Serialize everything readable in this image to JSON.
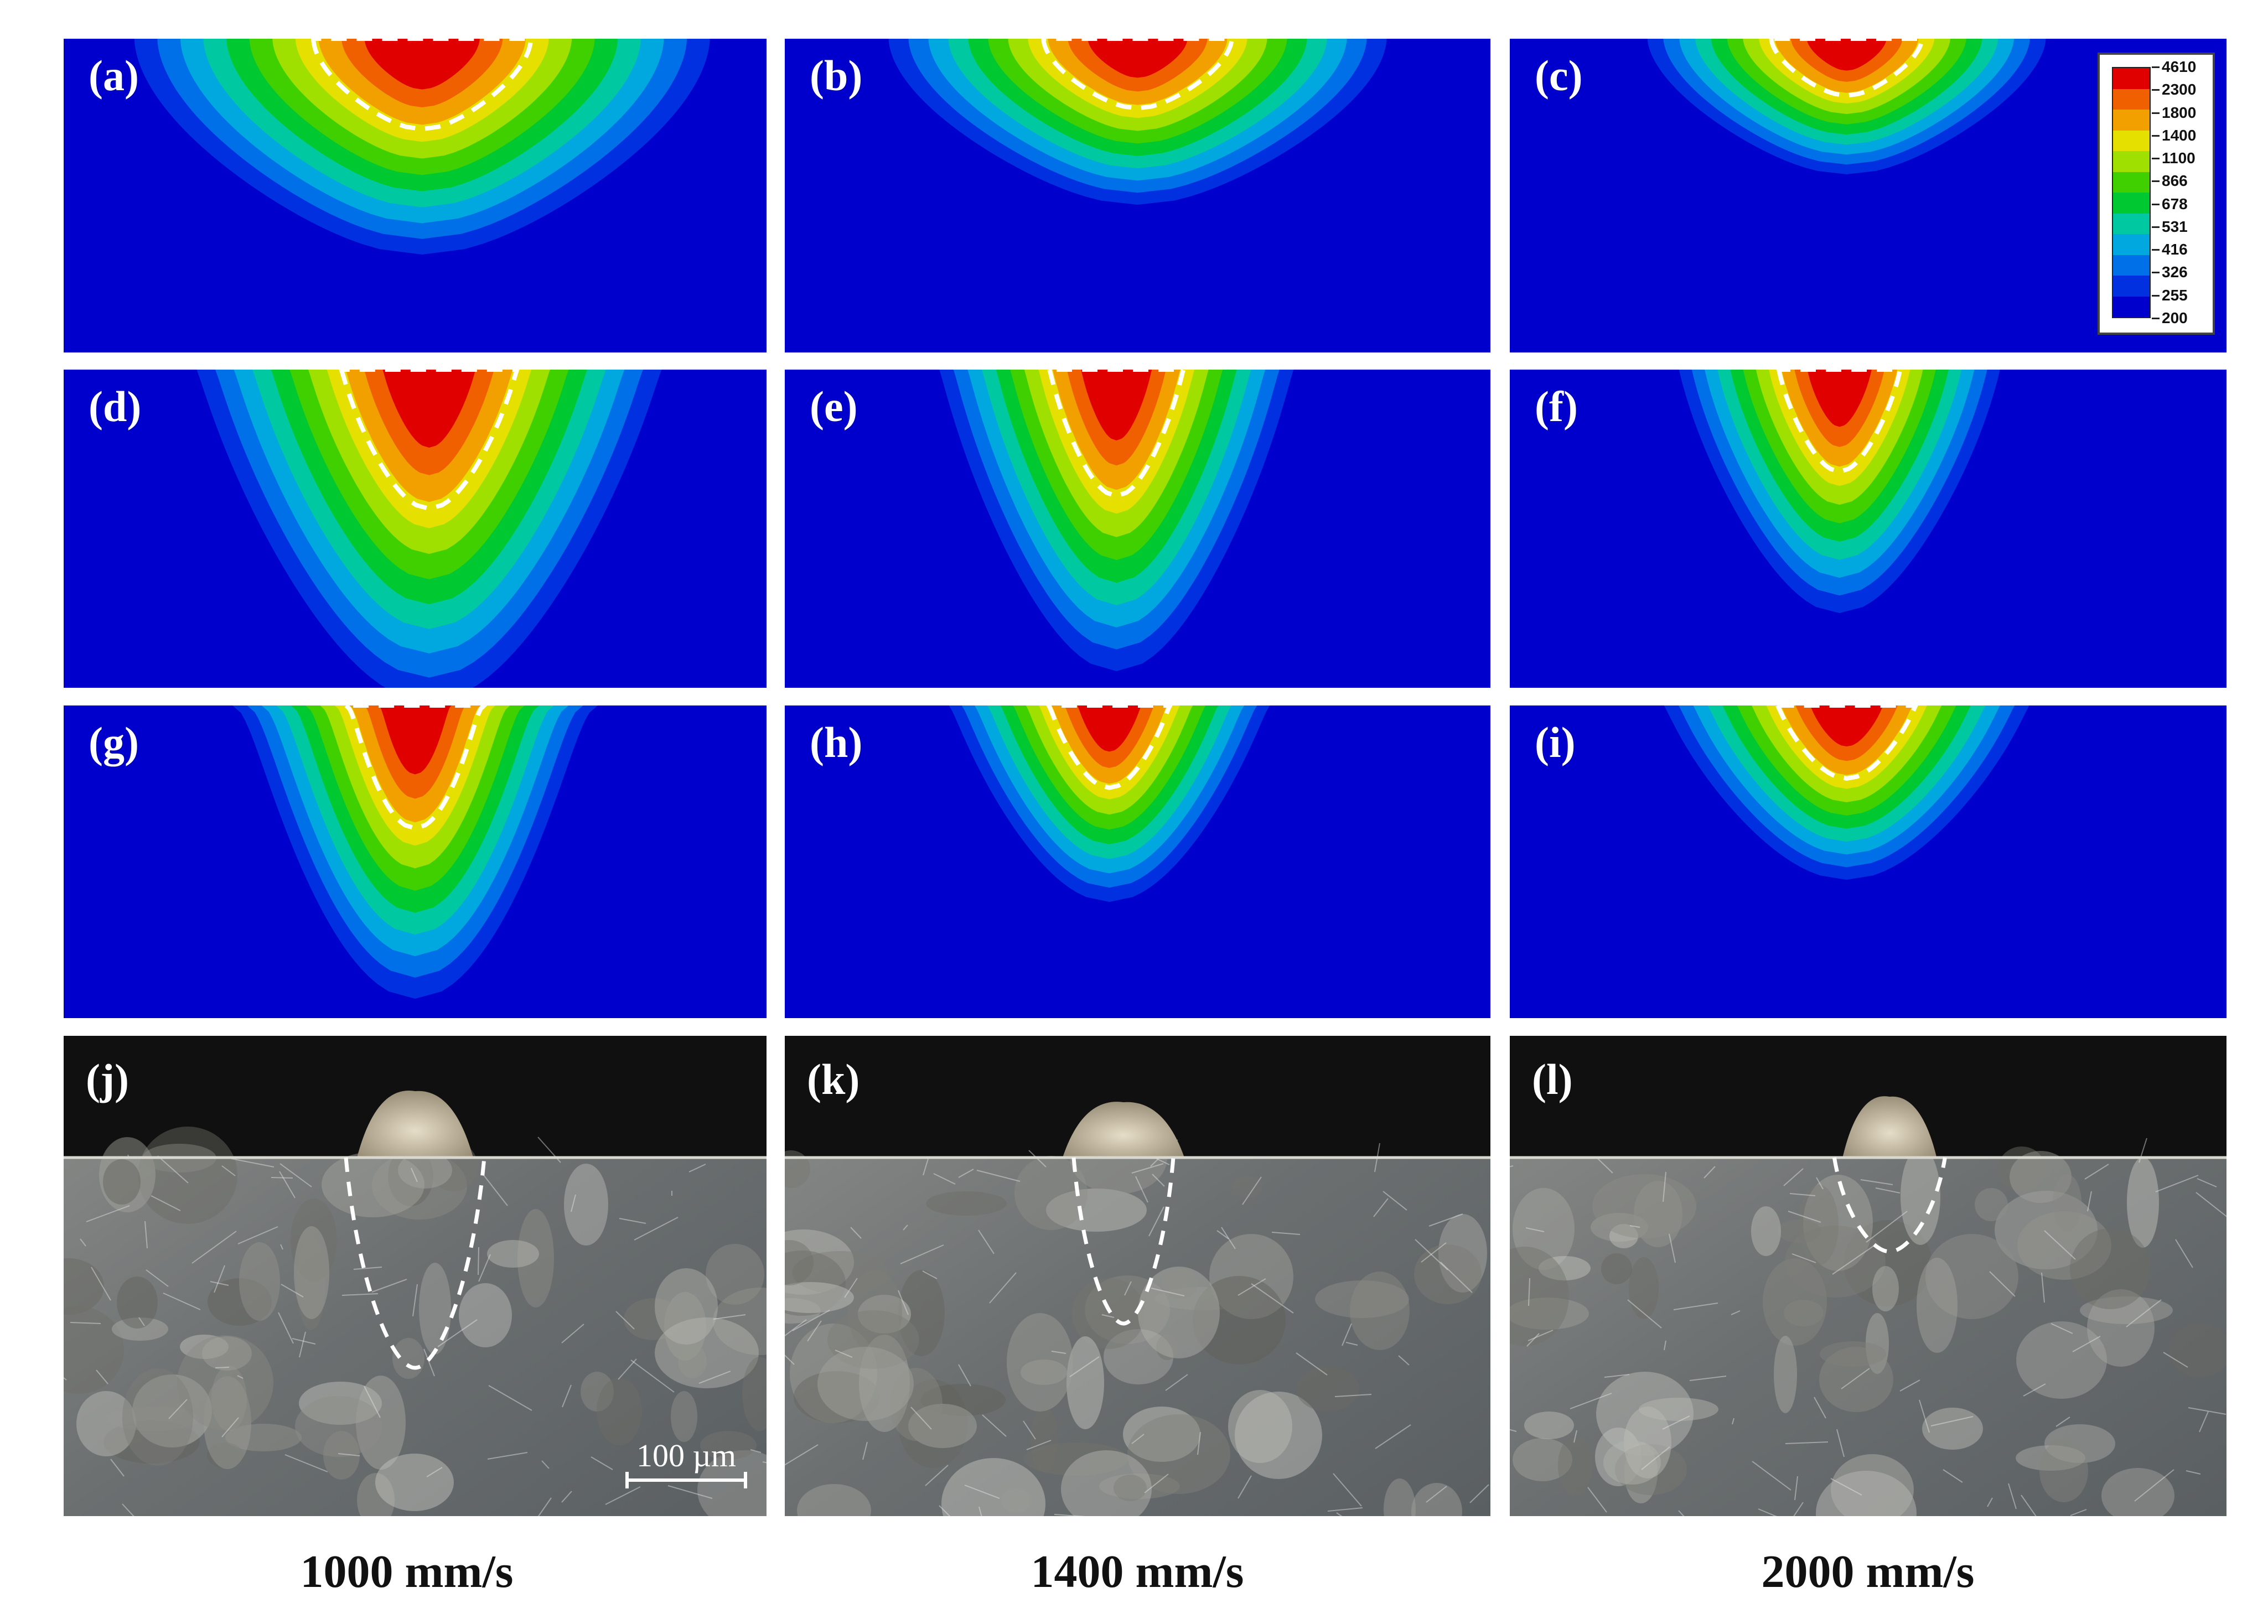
{
  "panel_labels": [
    "(a)",
    "(b)",
    "(c)",
    "(d)",
    "(e)",
    "(f)",
    "(g)",
    "(h)",
    "(i)",
    "(j)",
    "(k)",
    "(l)"
  ],
  "column_captions": [
    "1000 mm/s",
    "1400 mm/s",
    "2000 mm/s"
  ],
  "legend": {
    "levels": [
      "4610",
      "2300",
      "1800",
      "1400",
      "1100",
      "866",
      "678",
      "531",
      "416",
      "326",
      "255",
      "200"
    ],
    "colors": [
      "#e10000",
      "#f06000",
      "#f2a000",
      "#e6e000",
      "#a0e000",
      "#40d000",
      "#00c830",
      "#00c8a0",
      "#00a8e0",
      "#0070e8",
      "#0030e0",
      "#0000cc"
    ]
  },
  "scale_bar": {
    "label": "100 µm"
  },
  "colors": {
    "background": "#0000cc",
    "melt_boundary": "#ffffff",
    "micro_base": "#6b6e6e",
    "micro_dark": "#101010"
  }
}
